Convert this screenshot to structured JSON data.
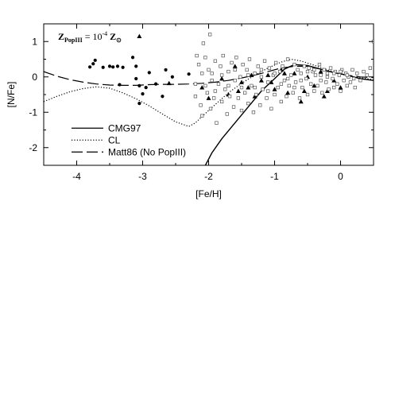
{
  "chart_data": {
    "type": "scatter",
    "xlabel": "[Fe/H]",
    "ylabel": "[N/Fe]",
    "xlim": [
      -4.5,
      0.5
    ],
    "ylim": [
      -2.5,
      1.5
    ],
    "x_ticks": [
      -4,
      -3,
      -2,
      -1,
      0
    ],
    "y_ticks": [
      1,
      0,
      -1,
      -2
    ],
    "grid": false,
    "legend_position": "bottom-left",
    "annotation": {
      "main": "Z",
      "sub": "PopIII",
      "mid": " = 10",
      "sup": "-4",
      "tail": " Z",
      "tail_sub": "⊙"
    },
    "series": [
      {
        "name": "CMG97",
        "kind": "line",
        "dash": "solid",
        "x": [
          -2.05,
          -1.95,
          -1.8,
          -1.6,
          -1.4,
          -1.2,
          -1.0,
          -0.85,
          -0.7,
          -0.5,
          -0.3,
          -0.1,
          0.1,
          0.3,
          0.5
        ],
        "y": [
          -2.5,
          -2.15,
          -1.75,
          -1.3,
          -0.85,
          -0.4,
          -0.05,
          0.22,
          0.35,
          0.32,
          0.22,
          0.12,
          0.05,
          -0.05,
          -0.1
        ]
      },
      {
        "name": "CL",
        "kind": "line",
        "dash": "dotted",
        "x": [
          -4.5,
          -4.3,
          -4.1,
          -3.9,
          -3.7,
          -3.5,
          -3.3,
          -3.1,
          -2.9,
          -2.7,
          -2.5,
          -2.3,
          -2.2,
          -2.1,
          -1.9,
          -1.7,
          -1.5,
          -1.3,
          -1.1,
          -0.9,
          -0.75,
          -0.6,
          -0.4,
          -0.2,
          0.0,
          0.2,
          0.4,
          0.5
        ],
        "y": [
          -0.7,
          -0.55,
          -0.42,
          -0.33,
          -0.28,
          -0.32,
          -0.45,
          -0.62,
          -0.82,
          -1.05,
          -1.27,
          -1.4,
          -1.3,
          -1.12,
          -0.78,
          -0.45,
          -0.18,
          0.05,
          0.25,
          0.42,
          0.5,
          0.45,
          0.33,
          0.2,
          0.08,
          0.0,
          -0.05,
          -0.08
        ]
      },
      {
        "name": "Matt86 (No PopIII)",
        "kind": "line",
        "dash": "dashed",
        "x": [
          -4.5,
          -4.3,
          -4.1,
          -3.9,
          -3.7,
          -3.5,
          -3.3,
          -3.1,
          -2.9,
          -2.7,
          -2.5,
          -2.3,
          -2.1,
          -1.9,
          -1.7,
          -1.5,
          -1.3,
          -1.1,
          -0.9,
          -0.7,
          -0.5,
          -0.3,
          -0.1,
          0.1,
          0.3,
          0.5
        ],
        "y": [
          0.15,
          0.02,
          -0.08,
          -0.15,
          -0.2,
          -0.23,
          -0.24,
          -0.24,
          -0.22,
          -0.21,
          -0.21,
          -0.2,
          -0.18,
          -0.15,
          -0.1,
          -0.03,
          0.05,
          0.15,
          0.25,
          0.3,
          0.3,
          0.22,
          0.12,
          0.05,
          0.0,
          -0.02
        ]
      },
      {
        "name": "",
        "kind": "points",
        "marker": "circle",
        "points": [
          [
            -3.8,
            0.28
          ],
          [
            -3.75,
            0.37
          ],
          [
            -3.72,
            0.47
          ],
          [
            -3.5,
            0.3
          ],
          [
            -3.45,
            0.28
          ],
          [
            -3.38,
            0.3
          ],
          [
            -3.3,
            0.27
          ],
          [
            -3.6,
            0.27
          ],
          [
            -3.35,
            -0.22
          ],
          [
            -3.15,
            0.55
          ],
          [
            -3.1,
            0.3
          ],
          [
            -3.05,
            -0.25
          ],
          [
            -3.0,
            -0.48
          ],
          [
            -2.95,
            -0.3
          ],
          [
            -2.9,
            0.12
          ],
          [
            -3.1,
            -0.05
          ],
          [
            -2.8,
            -0.2
          ],
          [
            -2.7,
            -0.55
          ],
          [
            -2.65,
            0.2
          ],
          [
            -2.55,
            0.0
          ],
          [
            -2.3,
            0.08
          ],
          [
            -3.05,
            -0.75
          ]
        ]
      },
      {
        "name": "",
        "kind": "points",
        "marker": "triangle",
        "points": [
          [
            -3.05,
            1.15
          ],
          [
            -2.6,
            -0.18
          ],
          [
            -2.1,
            -0.3
          ],
          [
            -1.8,
            -0.05
          ],
          [
            -1.7,
            -0.5
          ],
          [
            -1.6,
            0.3
          ],
          [
            -1.5,
            -0.15
          ],
          [
            -1.4,
            -0.3
          ],
          [
            -1.3,
            -0.55
          ],
          [
            -1.2,
            -0.1
          ],
          [
            -1.1,
            0.05
          ],
          [
            -1.0,
            -0.35
          ],
          [
            -0.9,
            0.2
          ],
          [
            -0.8,
            -0.45
          ],
          [
            -0.7,
            0.1
          ],
          [
            -0.6,
            -0.7
          ],
          [
            -0.5,
            0.0
          ],
          [
            -0.4,
            -0.25
          ],
          [
            -0.3,
            0.15
          ],
          [
            -0.2,
            -0.4
          ],
          [
            -0.1,
            -0.1
          ],
          [
            0.0,
            -0.3
          ],
          [
            -1.35,
            0.05
          ],
          [
            -1.05,
            -0.15
          ],
          [
            -0.85,
            0.1
          ],
          [
            -0.55,
            -0.4
          ],
          [
            -1.55,
            -0.4
          ],
          [
            -0.25,
            -0.55
          ],
          [
            -2.0,
            -0.6
          ]
        ]
      },
      {
        "name": "",
        "kind": "points",
        "marker": "open-square",
        "points": [
          [
            -2.08,
            0.95
          ],
          [
            -1.98,
            1.2
          ],
          [
            -2.2,
            -0.2
          ],
          [
            -2.15,
            0.35
          ],
          [
            -2.12,
            -0.8
          ],
          [
            -2.1,
            -1.1
          ],
          [
            -2.05,
            0.55
          ],
          [
            -2.02,
            -0.45
          ],
          [
            -2.0,
            0.2
          ],
          [
            -1.97,
            -0.9
          ],
          [
            -1.95,
            0.1
          ],
          [
            -1.92,
            -0.6
          ],
          [
            -1.9,
            0.45
          ],
          [
            -1.88,
            -1.3
          ],
          [
            -1.85,
            -0.2
          ],
          [
            -1.82,
            0.3
          ],
          [
            -1.8,
            -0.7
          ],
          [
            -1.78,
            0.6
          ],
          [
            -1.75,
            -0.35
          ],
          [
            -1.72,
            -1.05
          ],
          [
            -1.7,
            0.15
          ],
          [
            -1.68,
            -0.55
          ],
          [
            -1.65,
            0.4
          ],
          [
            -1.62,
            -0.85
          ],
          [
            -1.6,
            -0.1
          ],
          [
            -1.58,
            0.55
          ],
          [
            -1.55,
            -0.6
          ],
          [
            -1.52,
            0.0
          ],
          [
            -1.5,
            -0.95
          ],
          [
            -1.48,
            0.35
          ],
          [
            -1.45,
            -0.45
          ],
          [
            -1.42,
            0.2
          ],
          [
            -1.4,
            -0.75
          ],
          [
            -1.38,
            0.5
          ],
          [
            -1.35,
            -0.25
          ],
          [
            -1.32,
            -1.0
          ],
          [
            -1.3,
            0.1
          ],
          [
            -1.28,
            -0.5
          ],
          [
            -1.25,
            0.3
          ],
          [
            -1.22,
            -0.8
          ],
          [
            -1.2,
            0.0
          ],
          [
            -1.18,
            -0.35
          ],
          [
            -1.15,
            0.45
          ],
          [
            -1.12,
            -0.6
          ],
          [
            -1.1,
            -0.15
          ],
          [
            -1.08,
            0.25
          ],
          [
            -1.05,
            -0.9
          ],
          [
            -1.02,
            0.05
          ],
          [
            -1.0,
            -0.5
          ],
          [
            -0.98,
            0.4
          ],
          [
            -0.95,
            -0.3
          ],
          [
            -0.92,
            0.15
          ],
          [
            -0.9,
            -0.7
          ],
          [
            -0.88,
            0.3
          ],
          [
            -0.85,
            -0.1
          ],
          [
            -0.82,
            -0.55
          ],
          [
            -0.8,
            0.5
          ],
          [
            -0.78,
            -0.25
          ],
          [
            -0.75,
            0.05
          ],
          [
            -0.72,
            -0.45
          ],
          [
            -0.7,
            0.35
          ],
          [
            -0.68,
            -0.15
          ],
          [
            -0.65,
            0.2
          ],
          [
            -0.62,
            -0.6
          ],
          [
            -0.6,
            0.1
          ],
          [
            -0.58,
            -0.3
          ],
          [
            -0.55,
            0.3
          ],
          [
            -0.52,
            -0.05
          ],
          [
            -0.5,
            -0.5
          ],
          [
            -0.48,
            0.25
          ],
          [
            -0.45,
            -0.2
          ],
          [
            -0.42,
            0.15
          ],
          [
            -0.4,
            -0.4
          ],
          [
            -0.38,
            0.05
          ],
          [
            -0.35,
            -0.25
          ],
          [
            -0.32,
            0.35
          ],
          [
            -0.3,
            -0.1
          ],
          [
            -0.28,
            -0.45
          ],
          [
            -0.25,
            0.2
          ],
          [
            -0.22,
            -0.15
          ],
          [
            -0.2,
            0.1
          ],
          [
            -0.18,
            -0.35
          ],
          [
            -0.15,
            0.25
          ],
          [
            -0.12,
            -0.05
          ],
          [
            -0.1,
            -0.3
          ],
          [
            -0.08,
            0.15
          ],
          [
            -0.05,
            -0.2
          ],
          [
            -0.02,
            0.05
          ],
          [
            0.0,
            -0.4
          ],
          [
            0.02,
            0.2
          ],
          [
            0.05,
            -0.1
          ],
          [
            0.08,
            0.1
          ],
          [
            0.1,
            -0.25
          ],
          [
            0.12,
            0.0
          ],
          [
            0.15,
            -0.15
          ],
          [
            0.18,
            0.2
          ],
          [
            0.2,
            -0.05
          ],
          [
            0.22,
            -0.3
          ],
          [
            0.25,
            0.1
          ],
          [
            0.3,
            -0.1
          ],
          [
            0.35,
            0.15
          ],
          [
            0.4,
            0.05
          ],
          [
            0.45,
            0.25
          ],
          [
            0.5,
            1.0
          ],
          [
            -2.18,
            0.6
          ],
          [
            -2.2,
            -0.55
          ],
          [
            -2.05,
            -0.25
          ],
          [
            -1.9,
            -0.4
          ],
          [
            -1.7,
            -0.25
          ],
          [
            -1.5,
            -0.3
          ],
          [
            -1.3,
            -0.3
          ],
          [
            -1.1,
            -0.4
          ],
          [
            -0.9,
            -0.2
          ],
          [
            -0.7,
            -0.3
          ],
          [
            -0.5,
            0.15
          ],
          [
            -0.3,
            0.05
          ],
          [
            -0.1,
            0.1
          ],
          [
            0.1,
            0.05
          ],
          [
            -2.1,
            0.1
          ],
          [
            -1.95,
            -0.1
          ],
          [
            -1.8,
            0.05
          ],
          [
            -1.6,
            0.2
          ],
          [
            -1.4,
            0.05
          ],
          [
            -1.2,
            0.2
          ],
          [
            -1.0,
            0.1
          ],
          [
            -0.8,
            -0.05
          ],
          [
            -0.6,
            -0.1
          ],
          [
            -0.4,
            0.2
          ],
          [
            -0.2,
            0.0
          ],
          [
            0.0,
            0.15
          ]
        ]
      }
    ]
  }
}
